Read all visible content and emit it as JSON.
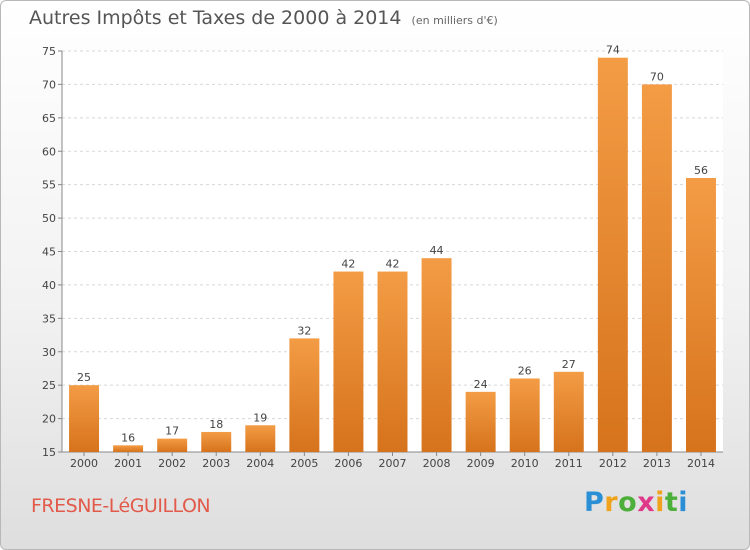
{
  "chart_data": {
    "type": "bar",
    "title": "Autres Impôts et Taxes de 2000 à 2014",
    "subtitle": "(en milliers d'€)",
    "categories": [
      "2000",
      "2001",
      "2002",
      "2003",
      "2004",
      "2005",
      "2006",
      "2007",
      "2008",
      "2009",
      "2010",
      "2011",
      "2012",
      "2013",
      "2014"
    ],
    "values": [
      25,
      16,
      17,
      18,
      19,
      32,
      42,
      42,
      44,
      24,
      26,
      27,
      74,
      70,
      56
    ],
    "ylim": [
      15,
      75
    ],
    "yticks": [
      15,
      20,
      25,
      30,
      35,
      40,
      45,
      50,
      55,
      60,
      65,
      70,
      75
    ],
    "grid": true,
    "bar_color": "#f39c45",
    "bar_color_dark": "#d6731c"
  },
  "footer": {
    "commune": "FRESNE-LéGUILLON",
    "logo": {
      "letters": [
        "P",
        "r",
        "o",
        "x",
        "i",
        "t",
        "i"
      ],
      "colors": [
        "#2b8fd6",
        "#f0a21c",
        "#4caf3a",
        "#e0398a",
        "#f0a21c",
        "#4caf3a",
        "#2b8fd6"
      ]
    }
  }
}
